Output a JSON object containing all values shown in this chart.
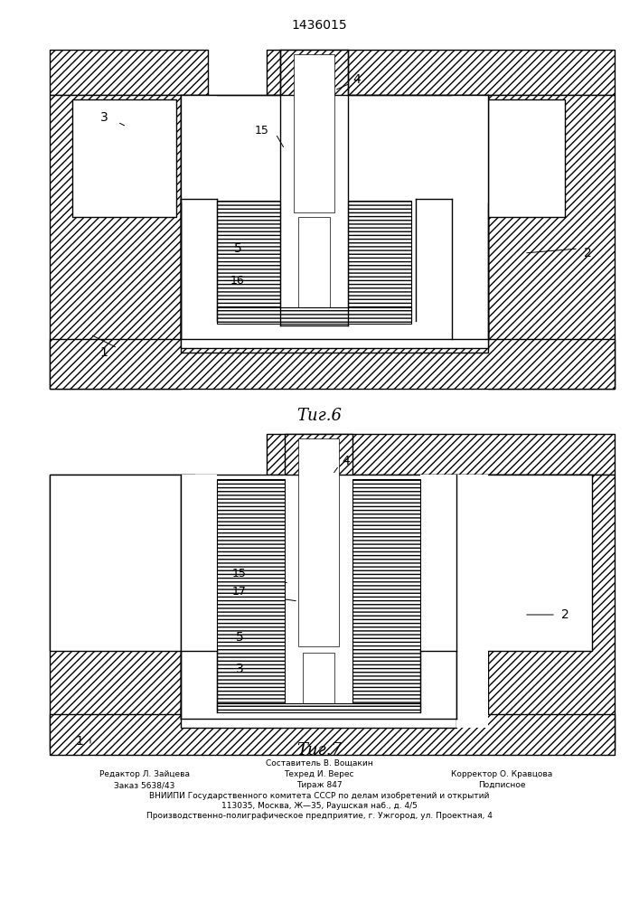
{
  "patent_number": "1436015",
  "fig6_caption": "Τиг.6",
  "fig7_caption": "Τиг.7",
  "bg_color": "#ffffff",
  "footer_line1": "Составитель В. Вощакин",
  "footer_line2_left": "Редактор Л. Зайцева",
  "footer_line2_mid": "Техред И. Верес",
  "footer_line2_right": "Корректор О. Кравцова",
  "footer_line3_left": "Заказ 5638/43",
  "footer_line3_mid": "Тираж 847",
  "footer_line3_right": "Подписное",
  "footer_line4": "ВНИИПИ Государственного комитета СССР по делам изобретений и открытий",
  "footer_line5": "113035, Москва, Ж—35, Раушская наб., д. 4/5",
  "footer_line6": "Производственно-полиграфическое предприятие, г. Ужгород, ул. Проектная, 4"
}
